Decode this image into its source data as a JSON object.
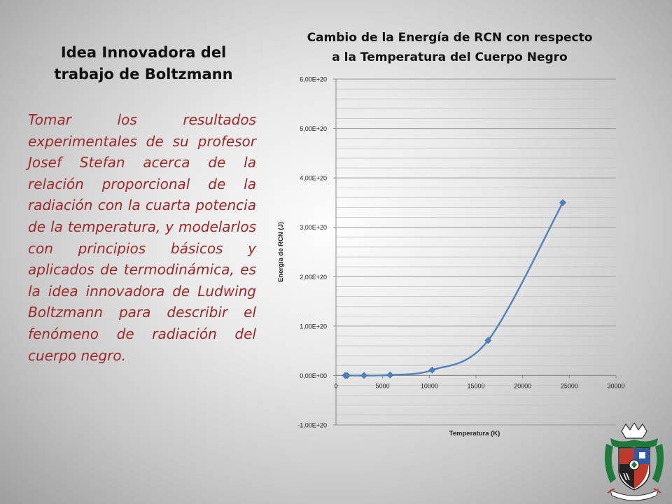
{
  "left_panel": {
    "title_lines": [
      "Idea Innovadora del",
      "trabajo de Boltzmann"
    ],
    "body": "Tomar los resultados experimentales de su profesor Josef Stefan acerca de la relación proporcional de la radiación con la cuarta potencia de la temperatura, y modelarlos con principios básicos y aplicados de termodinámica, es la idea innovadora de Ludwing Boltzmann para describir el fenómeno de radiación del cuerpo negro."
  },
  "chart_title_lines": [
    "Cambio de la Energía de RCN con respecto",
    "a la Temperatura del Cuerpo Negro"
  ],
  "chart_data": {
    "type": "scatter",
    "title": "Cambio de la Energía de RCN con respecto a la Temperatura del Cuerpo Negro",
    "xlabel": "Temperatura (K)",
    "ylabel": "Energía de RCN (J)",
    "xlim": [
      0,
      30000
    ],
    "ylim": [
      -1e+20,
      6e+20
    ],
    "x_ticks": [
      "0",
      "5000",
      "10000",
      "15000",
      "20000",
      "25000",
      "30000"
    ],
    "y_ticks": [
      "-1,00E+20",
      "0,00E+00",
      "1,00E+20",
      "2,00E+20",
      "3,00E+20",
      "4,00E+20",
      "5,00E+20",
      "6,00E+20"
    ],
    "y_tick_values": [
      -1e+20,
      0,
      1e+20,
      2e+20,
      3e+20,
      4e+20,
      5e+20,
      6e+20
    ],
    "grid": true,
    "legend": "none",
    "series": [
      {
        "color": "#4f81bd",
        "x": [
          1000,
          1200,
          3000,
          5800,
          10300,
          16300,
          24300
        ],
        "y": [
          1000000000000000.0,
          2100000000000000.0,
          8.1e+16,
          1.1e+18,
          1.1e+19,
          7.1e+19,
          3.5e+20
        ]
      }
    ]
  },
  "seal": {
    "name": "university-seal",
    "colors": {
      "green": "#1d7a3a",
      "red": "#c0392b",
      "blue": "#2e5aa8",
      "gold": "#d8b04a"
    }
  }
}
